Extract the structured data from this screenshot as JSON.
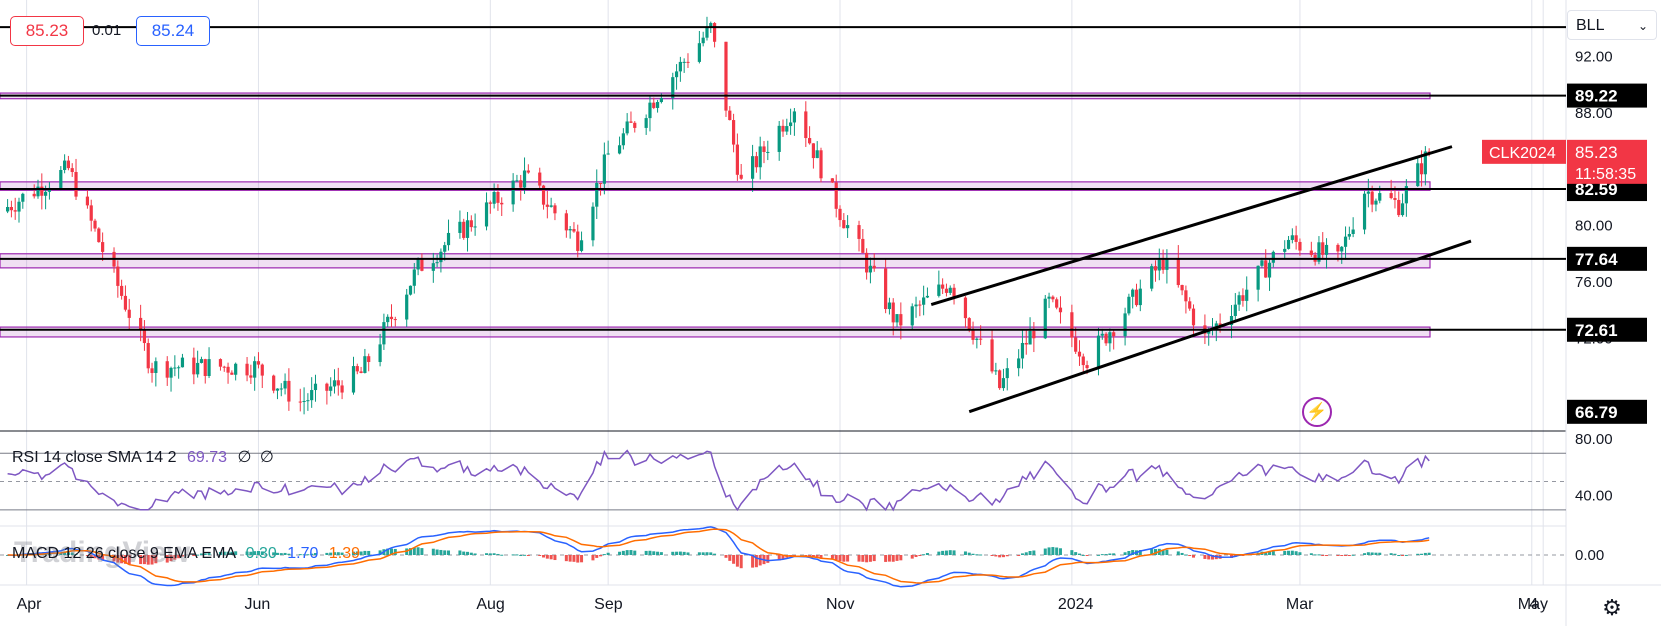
{
  "quote": {
    "bid": "85.23",
    "spread": "0.01",
    "ask": "85.24"
  },
  "symbol_selector": {
    "value": "BLL",
    "chevron": "chevron-down-icon"
  },
  "chart_data": {
    "type": "candlestick",
    "symbol_label": "CLK2024",
    "last_price": "85.23",
    "countdown": "11:58:35",
    "price_axis": {
      "range": [
        65.5,
        96.0
      ],
      "ticks": [
        {
          "value": 92.0,
          "label": "92.00"
        },
        {
          "value": 88.0,
          "label": "88.00"
        },
        {
          "value": 80.0,
          "label": "80.00"
        },
        {
          "value": 76.0,
          "label": "76.00"
        },
        {
          "value": 72.0,
          "label": "72.00"
        }
      ]
    },
    "time_axis": {
      "labels": [
        {
          "label": "Apr",
          "date": "2023-04"
        },
        {
          "label": "Jun",
          "date": "2023-06"
        },
        {
          "label": "Aug",
          "date": "2023-08"
        },
        {
          "label": "Sep",
          "date": "2023-09"
        },
        {
          "label": "Nov",
          "date": "2023-11"
        },
        {
          "label": "2024",
          "date": "2024-01"
        },
        {
          "label": "Mar",
          "date": "2024-03"
        },
        {
          "label": "May",
          "date": "2024-05"
        },
        {
          "label": "4",
          "date": "2024-05-04"
        }
      ]
    },
    "horizontal_levels": [
      {
        "value": 94.08,
        "label": ""
      },
      {
        "value": 89.22,
        "label": "89.22"
      },
      {
        "value": 82.59,
        "label": "82.59"
      },
      {
        "value": 77.64,
        "label": "77.64"
      },
      {
        "value": 72.61,
        "label": "72.61"
      },
      {
        "value": 66.79,
        "label": "66.79"
      }
    ],
    "zones": [
      {
        "from": 89.0,
        "to": 89.4
      },
      {
        "from": 82.5,
        "to": 83.1
      },
      {
        "from": 77.0,
        "to": 78.0
      },
      {
        "from": 72.1,
        "to": 72.8
      }
    ],
    "channel_lines": [
      {
        "from": {
          "date": "2023-11-25",
          "price": 74.4
        },
        "to": {
          "date": "2024-04-10",
          "price": 85.6
        }
      },
      {
        "from": {
          "date": "2023-12-05",
          "price": 66.8
        },
        "to": {
          "date": "2024-04-15",
          "price": 78.9
        }
      }
    ],
    "colors": {
      "up": "#089981",
      "down": "#f23645",
      "level": "#000000",
      "zone": "#9c27b0",
      "label_bg": "#f23645"
    },
    "rsi": {
      "legend": "RSI 14 close SMA 14 2",
      "value": "69.73",
      "extra1": "∅",
      "extra2": "∅",
      "upper": 70,
      "lower": 30,
      "ticks": [
        {
          "value": 80,
          "label": "80.00"
        },
        {
          "value": 40,
          "label": "40.00"
        }
      ],
      "color": "#7e57c2"
    },
    "macd": {
      "legend": "MACD 12 26 close 9 EMA EMA",
      "hist": "0.30",
      "macd_value": "1.70",
      "signal_value": "1.39",
      "ticks": [
        {
          "value": 0,
          "label": "0.00"
        }
      ],
      "hist_color_pos": "#26a69a",
      "hist_color_neg": "#ef5350",
      "macd_color": "#2962ff",
      "signal_color": "#ff6d00"
    }
  },
  "watermark": "TradingView",
  "icons": {
    "alert": "lightning-bolt-icon",
    "settings": "gear-icon"
  }
}
